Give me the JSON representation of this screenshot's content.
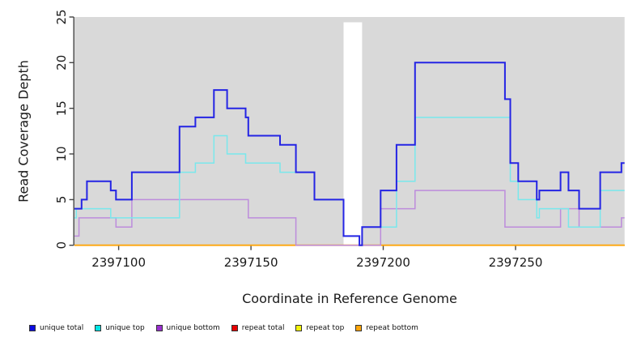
{
  "chart_data": {
    "type": "line",
    "subtype": "step-coverage",
    "title": "",
    "xlabel": "Coordinate in Reference Genome",
    "ylabel": "Read Coverage Depth",
    "xlim": [
      2397083.3,
      2397291.2
    ],
    "ylim": [
      0,
      25
    ],
    "x_ticks": [
      {
        "value": 2397100,
        "label": "2397100"
      },
      {
        "value": 2397150,
        "label": "2397150"
      },
      {
        "value": 2397200,
        "label": "2397200"
      },
      {
        "value": 2397250,
        "label": "2397250"
      }
    ],
    "y_ticks": [
      {
        "value": 0,
        "label": "0"
      },
      {
        "value": 5,
        "label": "5"
      },
      {
        "value": 10,
        "label": "10"
      },
      {
        "value": 15,
        "label": "15"
      },
      {
        "value": 20,
        "label": "20"
      },
      {
        "value": 25,
        "label": "25"
      }
    ],
    "plot_bg": "#d9d9d9",
    "axis_color": "#454545",
    "masked_region": {
      "from": 2397185,
      "to": 2397192
    },
    "grid": false,
    "legend_position": "bottom",
    "series": [
      {
        "name": "repeat total",
        "line_color": "#dd2222",
        "line_width": 1.5,
        "points": [
          [
            2397083.3,
            0
          ]
        ]
      },
      {
        "name": "repeat top",
        "line_color": "#f2f20a",
        "line_width": 1.5,
        "points": [
          [
            2397083.3,
            0
          ]
        ]
      },
      {
        "name": "repeat bottom",
        "line_color": "#ffa50a",
        "line_width": 1.8,
        "points": [
          [
            2397083.3,
            0
          ]
        ]
      },
      {
        "name": "unique bottom",
        "line_color": "#bd8cdc",
        "line_width": 1.5,
        "points": [
          [
            2397083.3,
            1
          ],
          [
            2397085,
            3
          ],
          [
            2397099,
            2
          ],
          [
            2397105,
            5
          ],
          [
            2397149,
            3
          ],
          [
            2397167,
            0
          ],
          [
            2397199,
            4
          ],
          [
            2397212,
            6
          ],
          [
            2397246,
            2
          ],
          [
            2397267,
            4
          ],
          [
            2397274,
            2
          ],
          [
            2397290,
            3
          ]
        ]
      },
      {
        "name": "unique top",
        "line_color": "#79e8ec",
        "line_width": 1.5,
        "points": [
          [
            2397083.3,
            3
          ],
          [
            2397084,
            4
          ],
          [
            2397097,
            3
          ],
          [
            2397123,
            8
          ],
          [
            2397129,
            9
          ],
          [
            2397136,
            12
          ],
          [
            2397141,
            10
          ],
          [
            2397148,
            9
          ],
          [
            2397161,
            8
          ],
          [
            2397174,
            5
          ],
          [
            2397185,
            1
          ],
          [
            2397191,
            0
          ],
          [
            2397192,
            2
          ],
          [
            2397205,
            7
          ],
          [
            2397212,
            14
          ],
          [
            2397248,
            7
          ],
          [
            2397251,
            5
          ],
          [
            2397258,
            3
          ],
          [
            2397259,
            4
          ],
          [
            2397270,
            2
          ],
          [
            2397282,
            6
          ]
        ]
      },
      {
        "name": "unique total",
        "line_color": "#2424e4",
        "line_width": 2,
        "points": [
          [
            2397083.3,
            4
          ],
          [
            2397086,
            5
          ],
          [
            2397088,
            7
          ],
          [
            2397097,
            6
          ],
          [
            2397099,
            5
          ],
          [
            2397105,
            8
          ],
          [
            2397123,
            13
          ],
          [
            2397129,
            14
          ],
          [
            2397136,
            17
          ],
          [
            2397141,
            15
          ],
          [
            2397148,
            14
          ],
          [
            2397149,
            12
          ],
          [
            2397161,
            11
          ],
          [
            2397167,
            8
          ],
          [
            2397174,
            5
          ],
          [
            2397185,
            1
          ],
          [
            2397191,
            0
          ],
          [
            2397192,
            2
          ],
          [
            2397199,
            6
          ],
          [
            2397205,
            11
          ],
          [
            2397212,
            20
          ],
          [
            2397246,
            16
          ],
          [
            2397248,
            9
          ],
          [
            2397251,
            7
          ],
          [
            2397258,
            5
          ],
          [
            2397259,
            6
          ],
          [
            2397267,
            8
          ],
          [
            2397270,
            6
          ],
          [
            2397274,
            4
          ],
          [
            2397282,
            8
          ],
          [
            2397290,
            9
          ]
        ]
      }
    ]
  },
  "legend": {
    "items": [
      {
        "label": "unique total",
        "color": "#0d0de0"
      },
      {
        "label": "unique top",
        "color": "#00e5e5"
      },
      {
        "label": "unique bottom",
        "color": "#9a30cf"
      },
      {
        "label": "repeat total",
        "color": "#e60000"
      },
      {
        "label": "repeat top",
        "color": "#f2f20a"
      },
      {
        "label": "repeat bottom",
        "color": "#ffa50a"
      }
    ]
  }
}
